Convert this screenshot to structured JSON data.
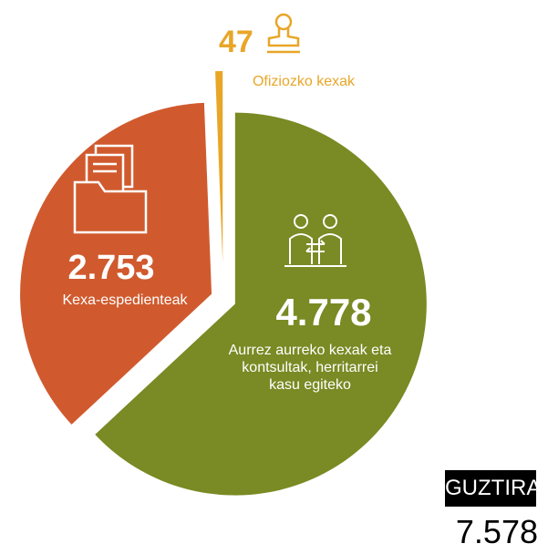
{
  "chart_data": {
    "type": "pie",
    "categories": [
      "Aurrez aurreko kexak eta kontsultak, herritarrei kasu egiteko",
      "Kexa-espedienteak",
      "Ofiziozko kexak"
    ],
    "values": [
      4778,
      2753,
      47
    ],
    "value_labels": [
      "4.778",
      "2.753",
      "47"
    ],
    "colors": [
      "#7a8a24",
      "#d05a2e",
      "#e8a628"
    ],
    "total": {
      "label": "GUZTIRA",
      "value": 7578,
      "value_label": "7.578"
    }
  }
}
